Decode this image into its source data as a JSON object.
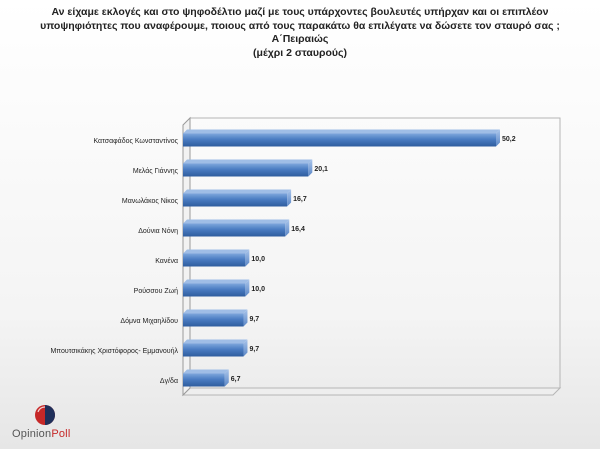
{
  "title_lines": [
    "Αν είχαμε εκλογές και στο ψηφοδέλτιο μαζί με τους υπάρχοντες βουλευτές υπήρχαν και οι επιπλέον",
    "υποψηφιότητες που αναφέρουμε, ποιους από τους παρακάτω θα επιλέγατε να δώσετε τον σταυρό σας ;",
    "Α΄Πειραιώς",
    "(μέχρι 2 σταυρούς)"
  ],
  "logo": {
    "text_main": "Opinion",
    "text_accent": "Poll",
    "colors": {
      "red": "#c62828",
      "navy": "#1f2f5a"
    }
  },
  "chart_data": {
    "type": "bar",
    "orientation": "horizontal",
    "categories": [
      "Κατσαφάδος Κωνσταντίνος",
      "Μελάς Γιάννης",
      "Μανωλάκος Νίκος",
      "Δούνια Νόνη",
      "Κανένα",
      "Ρούσσου Ζωή",
      "Δόμνα Μιχαηλίδου",
      "Μπουτσικάκης Χριστόφορος- Εμμανουήλ",
      "Δγ/δα"
    ],
    "values": [
      50.2,
      20.1,
      16.7,
      16.4,
      10.0,
      10.0,
      9.7,
      9.7,
      6.7
    ],
    "value_labels": [
      "50,2",
      "20,1",
      "16,7",
      "16,4",
      "10,0",
      "10,0",
      "9,7",
      "9,7",
      "6,7"
    ],
    "xlim": [
      0,
      60
    ],
    "grid": false,
    "legend": "none",
    "bar_color": "#4a7cc2"
  }
}
